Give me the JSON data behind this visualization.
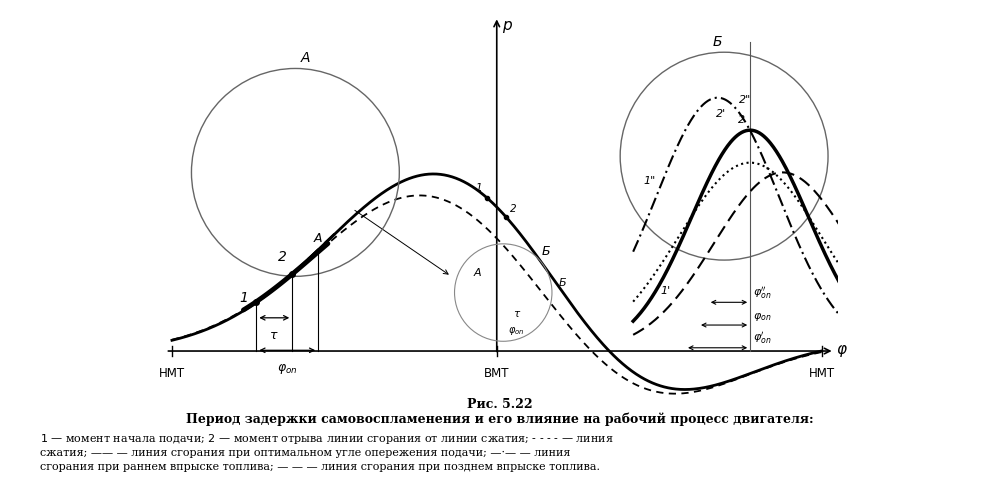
{
  "fig_width": 10.0,
  "fig_height": 5.0,
  "dpi": 100,
  "bg_color": "#ffffff",
  "title_fig": "Рис. 5.22",
  "title_main": "Период задержки самовоспламенения и его влияние на рабочий процесс двигателя:",
  "caption_line1": "1 — момент начала подачи; 2 — момент отрыва линии сгорания от линии сжатия; - - - - — линия",
  "caption_line2": "сжатия; ———— — линия сгорания при оптимальном угле опережения подачи; ·—·— — линия",
  "caption_line3": "сгорания при раннем впрыске топлива; — — — линия сгорания при позднем впрыске топлива."
}
